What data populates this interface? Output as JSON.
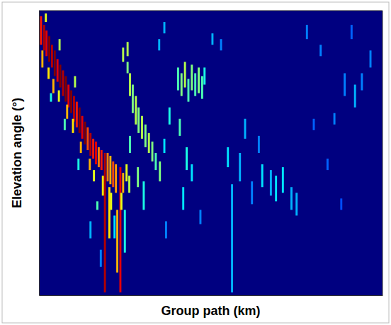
{
  "chart_data": {
    "type": "heatmap",
    "x_label": "Group path (km)",
    "y_label": "Elevation angle (°)",
    "tick_labels": false,
    "xlim": [
      0,
      100
    ],
    "ylim": [
      0,
      100
    ],
    "clim": [
      0,
      1
    ],
    "cell_width": 0.6,
    "x": [
      0.6,
      1.5,
      2.2,
      3.0,
      3.8,
      4.6,
      5.4,
      6.2,
      7.0,
      7.8,
      8.6,
      9.4,
      10.2,
      11.0,
      11.8,
      12.6,
      13.4,
      14.2,
      15.0,
      15.8,
      16.6,
      17.4,
      18.2,
      19.2,
      20.0,
      20.8,
      21.6,
      22.4,
      23.7,
      24.5,
      1.0,
      2.8,
      4.2,
      5.8,
      8.2,
      9.9,
      12.2,
      14.8,
      16.0,
      18.6,
      21.0,
      25.5,
      26.3,
      2.0,
      6.0,
      10.5,
      3.5,
      7.5,
      11.5,
      17.0,
      22.0,
      25.0,
      26.5,
      27.3,
      28.2,
      29.0,
      30.0,
      31.0,
      32.0,
      33.0,
      34.0,
      35.2,
      25.8,
      24.5,
      25.8,
      26.5,
      28.8,
      30.5,
      24.0,
      40.5,
      41.5,
      42.5,
      43.5,
      44.5,
      45.5,
      46.5,
      47.5,
      48.2,
      38.0,
      36.5,
      41.0,
      43.0,
      44.5,
      42.0,
      56.2,
      55.0,
      58.5,
      60.0,
      65.0,
      67.5,
      69.0,
      71.0,
      73.5,
      75.0,
      62.0,
      64.0,
      50.5,
      53.0,
      78.0,
      82.0,
      86.0,
      89.0,
      92.0,
      94.0,
      96.5,
      80.0,
      84.0,
      88.0,
      91.0,
      35.0,
      36.5,
      15.0,
      18.0,
      37.0,
      47.0,
      22.8,
      20.5
    ],
    "y_low": [
      88,
      86,
      84,
      82,
      80,
      77,
      75,
      73,
      70,
      68,
      66,
      64,
      61,
      59,
      57,
      55,
      53,
      51,
      49,
      48,
      46,
      45,
      44,
      1,
      40,
      39,
      38,
      36,
      1,
      36,
      80,
      76,
      71,
      68,
      62,
      57,
      50,
      44,
      40,
      35,
      30,
      40,
      36,
      96,
      86,
      73,
      68,
      58,
      44,
      30,
      20,
      15,
      70,
      64,
      60,
      57,
      55,
      52,
      50,
      47,
      44,
      40,
      78,
      82,
      84,
      50,
      38,
      30,
      30,
      72,
      70,
      73,
      68,
      72,
      70,
      71,
      69,
      74,
      60,
      50,
      56,
      44,
      40,
      30,
      1,
      45,
      40,
      55,
      38,
      35,
      33,
      36,
      30,
      28,
      32,
      50,
      88,
      86,
      90,
      84,
      60,
      70,
      66,
      72,
      80,
      58,
      44,
      30,
      90,
      86,
      92,
      20,
      10,
      20,
      25,
      8,
      20
    ],
    "y_high": [
      98,
      95,
      93,
      91,
      88,
      86,
      83,
      81,
      79,
      77,
      74,
      72,
      70,
      68,
      66,
      63,
      61,
      59,
      57,
      55,
      54,
      52,
      51,
      50,
      50,
      49,
      47,
      46,
      45,
      43,
      86,
      80,
      76,
      72,
      67,
      62,
      54,
      48,
      44,
      42,
      36,
      46,
      42,
      99,
      90,
      77,
      71,
      62,
      48,
      33,
      28,
      30,
      78,
      74,
      70,
      66,
      63,
      60,
      57,
      54,
      50,
      47,
      82,
      87,
      89,
      56,
      45,
      40,
      36,
      80,
      78,
      82,
      76,
      81,
      78,
      80,
      77,
      80,
      66,
      55,
      62,
      52,
      46,
      38,
      39,
      52,
      50,
      62,
      46,
      44,
      42,
      45,
      38,
      36,
      40,
      56,
      92,
      90,
      95,
      88,
      64,
      78,
      74,
      78,
      86,
      62,
      48,
      34,
      95,
      90,
      96,
      26,
      16,
      26,
      30,
      30,
      38
    ],
    "values": [
      0.85,
      0.95,
      0.9,
      1.0,
      0.95,
      1.0,
      0.9,
      1.0,
      0.95,
      1.0,
      0.9,
      1.0,
      0.95,
      0.85,
      1.0,
      0.9,
      1.0,
      0.8,
      0.95,
      0.85,
      0.9,
      0.75,
      0.85,
      0.95,
      0.75,
      0.7,
      0.8,
      0.72,
      0.9,
      0.7,
      0.7,
      0.65,
      0.7,
      0.6,
      0.7,
      0.65,
      0.7,
      0.7,
      0.6,
      0.65,
      0.6,
      0.6,
      0.55,
      0.6,
      0.55,
      0.55,
      0.4,
      0.45,
      0.4,
      0.45,
      0.35,
      0.4,
      0.55,
      0.5,
      0.55,
      0.5,
      0.55,
      0.5,
      0.55,
      0.5,
      0.45,
      0.5,
      0.5,
      0.55,
      0.55,
      0.45,
      0.5,
      0.4,
      0.6,
      0.45,
      0.5,
      0.55,
      0.45,
      0.5,
      0.45,
      0.5,
      0.45,
      0.4,
      0.4,
      0.35,
      0.45,
      0.4,
      0.35,
      0.35,
      0.3,
      0.35,
      0.3,
      0.3,
      0.35,
      0.3,
      0.35,
      0.35,
      0.3,
      0.3,
      0.25,
      0.25,
      0.3,
      0.25,
      0.25,
      0.25,
      0.25,
      0.25,
      0.3,
      0.25,
      0.25,
      0.22,
      0.22,
      0.2,
      0.22,
      0.3,
      0.3,
      0.3,
      0.25,
      0.25,
      0.25,
      0.7,
      0.65
    ]
  }
}
